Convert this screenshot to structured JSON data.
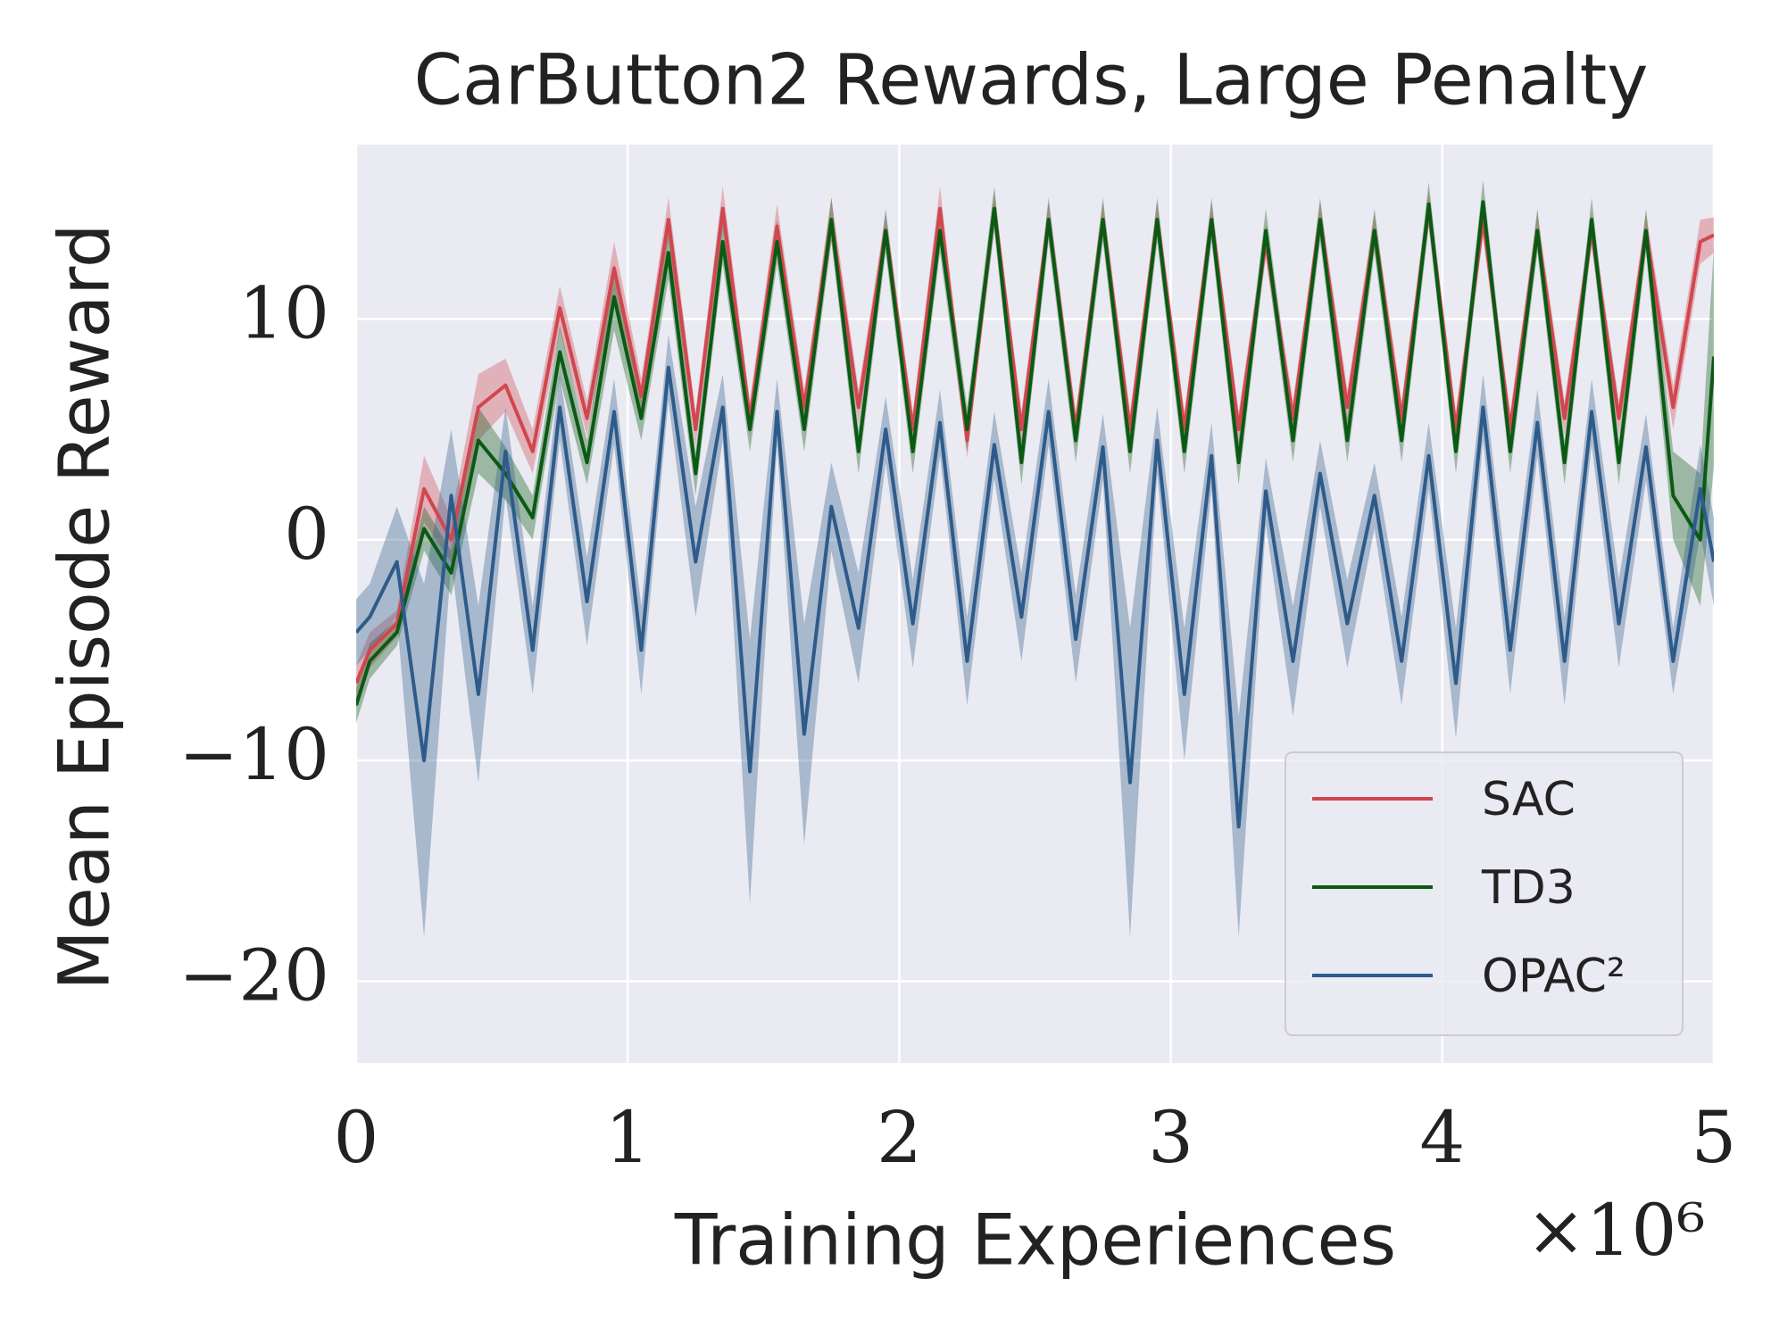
{
  "chart_data": {
    "type": "line",
    "title": "CarButton2 Rewards, Large Penalty",
    "x_label": "Training Experiences",
    "x_offset_label": "×10⁶",
    "y_label": "Mean Episode Reward",
    "x": [
      0,
      0.05,
      0.15,
      0.25,
      0.35,
      0.45,
      0.55,
      0.65,
      0.75,
      0.85,
      0.95,
      1.05,
      1.15,
      1.25,
      1.35,
      1.45,
      1.55,
      1.65,
      1.75,
      1.85,
      1.95,
      2.05,
      2.15,
      2.25,
      2.35,
      2.45,
      2.55,
      2.65,
      2.75,
      2.85,
      2.95,
      3.05,
      3.15,
      3.25,
      3.35,
      3.45,
      3.55,
      3.65,
      3.75,
      3.85,
      3.95,
      4.05,
      4.15,
      4.25,
      4.35,
      4.45,
      4.55,
      4.65,
      4.75,
      4.85,
      4.95,
      5.0
    ],
    "series": [
      {
        "name": "SAC",
        "color": "#d0474f",
        "values": [
          -6.5,
          -5,
          -3.8,
          2.3,
          0,
          6,
          7,
          4,
          10.5,
          5.5,
          12.3,
          6.5,
          14.5,
          5,
          15,
          5.5,
          14.2,
          6,
          14.5,
          6,
          14,
          5,
          15,
          4.5,
          15,
          5,
          14.5,
          5,
          14.5,
          5,
          14.5,
          5,
          14.5,
          5,
          13.5,
          5.5,
          14.5,
          6,
          14,
          5.5,
          15,
          5,
          14.5,
          5,
          14,
          5.5,
          14,
          5.5,
          14,
          6,
          13.5,
          13.8
        ],
        "errors": [
          0.8,
          0.8,
          0.6,
          1.5,
          1,
          1.5,
          1.2,
          1,
          1,
          0.8,
          1.2,
          0.8,
          1,
          0.8,
          1,
          0.8,
          1,
          0.8,
          1,
          0.8,
          0.8,
          0.8,
          1,
          0.8,
          0.8,
          0.8,
          0.8,
          0.8,
          0.8,
          0.8,
          0.8,
          0.8,
          0.8,
          0.8,
          0.8,
          0.8,
          0.8,
          0.8,
          0.8,
          0.8,
          0.8,
          0.8,
          0.8,
          0.8,
          0.8,
          0.8,
          0.8,
          0.8,
          0.8,
          1,
          1,
          0.8
        ]
      },
      {
        "name": "TD3",
        "color": "#0b5a14",
        "values": [
          -7.5,
          -5.5,
          -4.2,
          0.5,
          -1.5,
          4.5,
          3,
          1,
          8.5,
          3.5,
          11,
          5.5,
          13,
          3,
          13.5,
          5,
          13.5,
          5,
          14.5,
          4,
          14,
          4,
          14,
          5,
          15,
          3.5,
          14.5,
          4.5,
          14.5,
          4,
          14.5,
          4,
          14.5,
          3.5,
          14,
          4.5,
          14.5,
          4.5,
          14,
          4.5,
          15.2,
          4,
          15.3,
          4,
          14,
          3.5,
          14.5,
          3.5,
          14,
          2,
          0,
          8.3
        ],
        "errors": [
          0.8,
          0.8,
          0.6,
          1,
          1,
          1.5,
          1.2,
          1,
          1.2,
          1,
          1.5,
          1,
          1.2,
          1,
          1,
          1,
          1,
          1,
          1,
          1,
          1,
          1,
          1,
          1,
          1,
          1,
          1,
          1,
          1,
          1,
          1,
          1,
          1,
          1,
          1,
          1,
          1,
          1,
          1,
          1,
          1,
          1,
          1,
          1,
          1,
          1,
          1,
          1,
          1,
          2,
          3,
          5
        ]
      },
      {
        "name": "OPAC²",
        "color": "#2e5b8a",
        "values": [
          -4.2,
          -3.5,
          -1,
          -10,
          2,
          -7,
          4,
          -5,
          6,
          -2.8,
          5.8,
          -5,
          7.8,
          -1,
          6,
          -10.5,
          5.8,
          -8.8,
          1.5,
          -4,
          5,
          -3.8,
          5.3,
          -5.5,
          4.3,
          -3.5,
          5.8,
          -4.5,
          4.2,
          -11,
          4.5,
          -7,
          3.8,
          -13,
          2.2,
          -5.5,
          3,
          -3.8,
          2,
          -5.5,
          3.8,
          -6.5,
          6,
          -5,
          5.3,
          -5.5,
          5.8,
          -3.8,
          4.2,
          -5.5,
          2.3,
          -1
        ],
        "errors": [
          1.5,
          1.5,
          2.5,
          8,
          3,
          4,
          2,
          2,
          1.5,
          2,
          1.5,
          2,
          1.5,
          2.5,
          1.5,
          6,
          1.5,
          5,
          2,
          2.5,
          1.5,
          2,
          1.5,
          2,
          1.5,
          2,
          1.5,
          2,
          1.5,
          7,
          1.5,
          3,
          1.5,
          5,
          1.5,
          2.5,
          1.5,
          2,
          1.5,
          2,
          1.5,
          2.5,
          1.5,
          2,
          1.5,
          2,
          1.5,
          2,
          1.5,
          1.5,
          2,
          2
        ]
      }
    ],
    "xlim": [
      0,
      5
    ],
    "ylim": [
      -23.7,
      17.9
    ],
    "xticks": [
      0,
      1,
      2,
      3,
      4,
      5
    ],
    "yticks": [
      {
        "value": -20,
        "label": "−20"
      },
      {
        "value": -10,
        "label": "−10"
      },
      0,
      10
    ],
    "grid": true,
    "legend": "lower right"
  }
}
